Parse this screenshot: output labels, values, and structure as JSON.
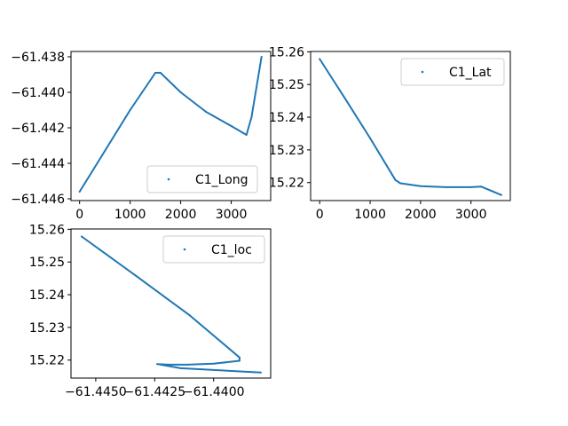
{
  "chart_data": [
    {
      "type": "scatter",
      "title": "",
      "xlabel": "",
      "ylabel": "",
      "xlim": [
        -170,
        3780
      ],
      "ylim": [
        -61.4461,
        -61.4377
      ],
      "xticks": [
        0,
        1000,
        2000,
        3000
      ],
      "xtick_labels": [
        "0",
        "1000",
        "2000",
        "3000"
      ],
      "yticks": [
        -61.446,
        -61.444,
        -61.442,
        -61.44,
        -61.438
      ],
      "ytick_labels": [
        "−61.446",
        "−61.444",
        "−61.442",
        "−61.440",
        "−61.438"
      ],
      "legend_position": "lower-right",
      "grid": false,
      "series": [
        {
          "name": "C1_Long",
          "color": "#1f77b4",
          "x": [
            0,
            500,
            1000,
            1500,
            1600,
            2000,
            2500,
            3000,
            3300,
            3400,
            3600
          ],
          "y": [
            -61.4456,
            -61.4433,
            -61.441,
            -61.4389,
            -61.4389,
            -61.44,
            -61.4411,
            -61.4419,
            -61.4424,
            -61.4414,
            -61.438
          ]
        }
      ]
    },
    {
      "type": "scatter",
      "title": "",
      "xlabel": "",
      "ylabel": "",
      "xlim": [
        -180,
        3780
      ],
      "ylim": [
        15.2145,
        15.2601
      ],
      "xticks": [
        0,
        1000,
        2000,
        3000
      ],
      "xtick_labels": [
        "0",
        "1000",
        "2000",
        "3000"
      ],
      "yticks": [
        15.22,
        15.23,
        15.24,
        15.25,
        15.26
      ],
      "ytick_labels": [
        "15.22",
        "15.23",
        "15.24",
        "15.25",
        "15.26"
      ],
      "legend_position": "upper-right",
      "grid": false,
      "series": [
        {
          "name": "C1_Lat",
          "color": "#1f77b4",
          "x": [
            0,
            500,
            1000,
            1500,
            1600,
            2000,
            2500,
            3000,
            3200,
            3400,
            3600
          ],
          "y": [
            15.2578,
            15.2458,
            15.2336,
            15.2208,
            15.2198,
            15.2189,
            15.2186,
            15.2186,
            15.2188,
            15.2175,
            15.2162
          ]
        }
      ]
    },
    {
      "type": "scatter",
      "title": "",
      "xlabel": "",
      "ylabel": "",
      "xlim": [
        -61.44605,
        -61.43758
      ],
      "ylim": [
        15.2145,
        15.2601
      ],
      "xticks": [
        -61.445,
        -61.4425,
        -61.44
      ],
      "xtick_labels": [
        "−61.4450",
        "−61.4425",
        "−61.4400"
      ],
      "yticks": [
        15.22,
        15.23,
        15.24,
        15.25,
        15.26
      ],
      "ytick_labels": [
        "15.22",
        "15.23",
        "15.24",
        "15.25",
        "15.26"
      ],
      "legend_position": "upper-right",
      "grid": false,
      "series": [
        {
          "name": "C1_loc",
          "color": "#1f77b4",
          "x": [
            -61.4456,
            -61.4433,
            -61.441,
            -61.4389,
            -61.4389,
            -61.44,
            -61.4411,
            -61.4419,
            -61.4424,
            -61.4414,
            -61.438
          ],
          "y": [
            15.2578,
            15.2458,
            15.2336,
            15.2208,
            15.2198,
            15.2189,
            15.2186,
            15.2186,
            15.2188,
            15.2175,
            15.2162
          ]
        }
      ]
    }
  ]
}
